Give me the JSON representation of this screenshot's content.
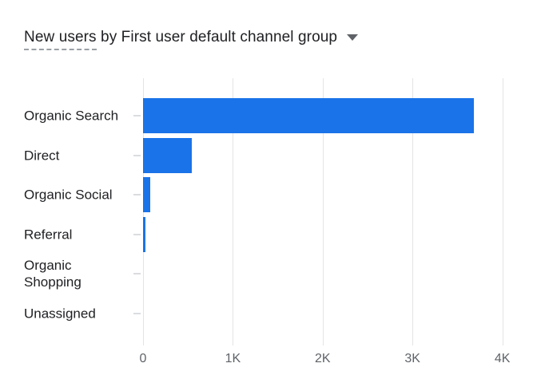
{
  "title": {
    "metric": "New users",
    "rest": " by First user default channel group",
    "dropdown_icon": "triangle-down"
  },
  "colors": {
    "bar": "#1a73e8",
    "gridline": "#e2e4e7",
    "category_tick": "#dadce0",
    "axis_label": "#5f6368",
    "category_label": "#202124",
    "title_text": "#202124",
    "underline_dash": "#9aa0a6"
  },
  "chart_data": {
    "type": "bar",
    "orientation": "horizontal",
    "title": "New users by First user default channel group",
    "categories": [
      "Organic Search",
      "Direct",
      "Organic Social",
      "Referral",
      "Organic Shopping",
      "Unassigned"
    ],
    "values": [
      3680,
      540,
      80,
      30,
      5,
      2
    ],
    "x_ticks": [
      {
        "label": "0",
        "value": 0
      },
      {
        "label": "1K",
        "value": 1000
      },
      {
        "label": "2K",
        "value": 2000
      },
      {
        "label": "3K",
        "value": 3000
      },
      {
        "label": "4K",
        "value": 4000
      }
    ],
    "xlim": [
      0,
      4341
    ],
    "xlabel": "",
    "ylabel": "",
    "grid": "vertical",
    "legend": "none",
    "bar_color": "#1a73e8"
  }
}
